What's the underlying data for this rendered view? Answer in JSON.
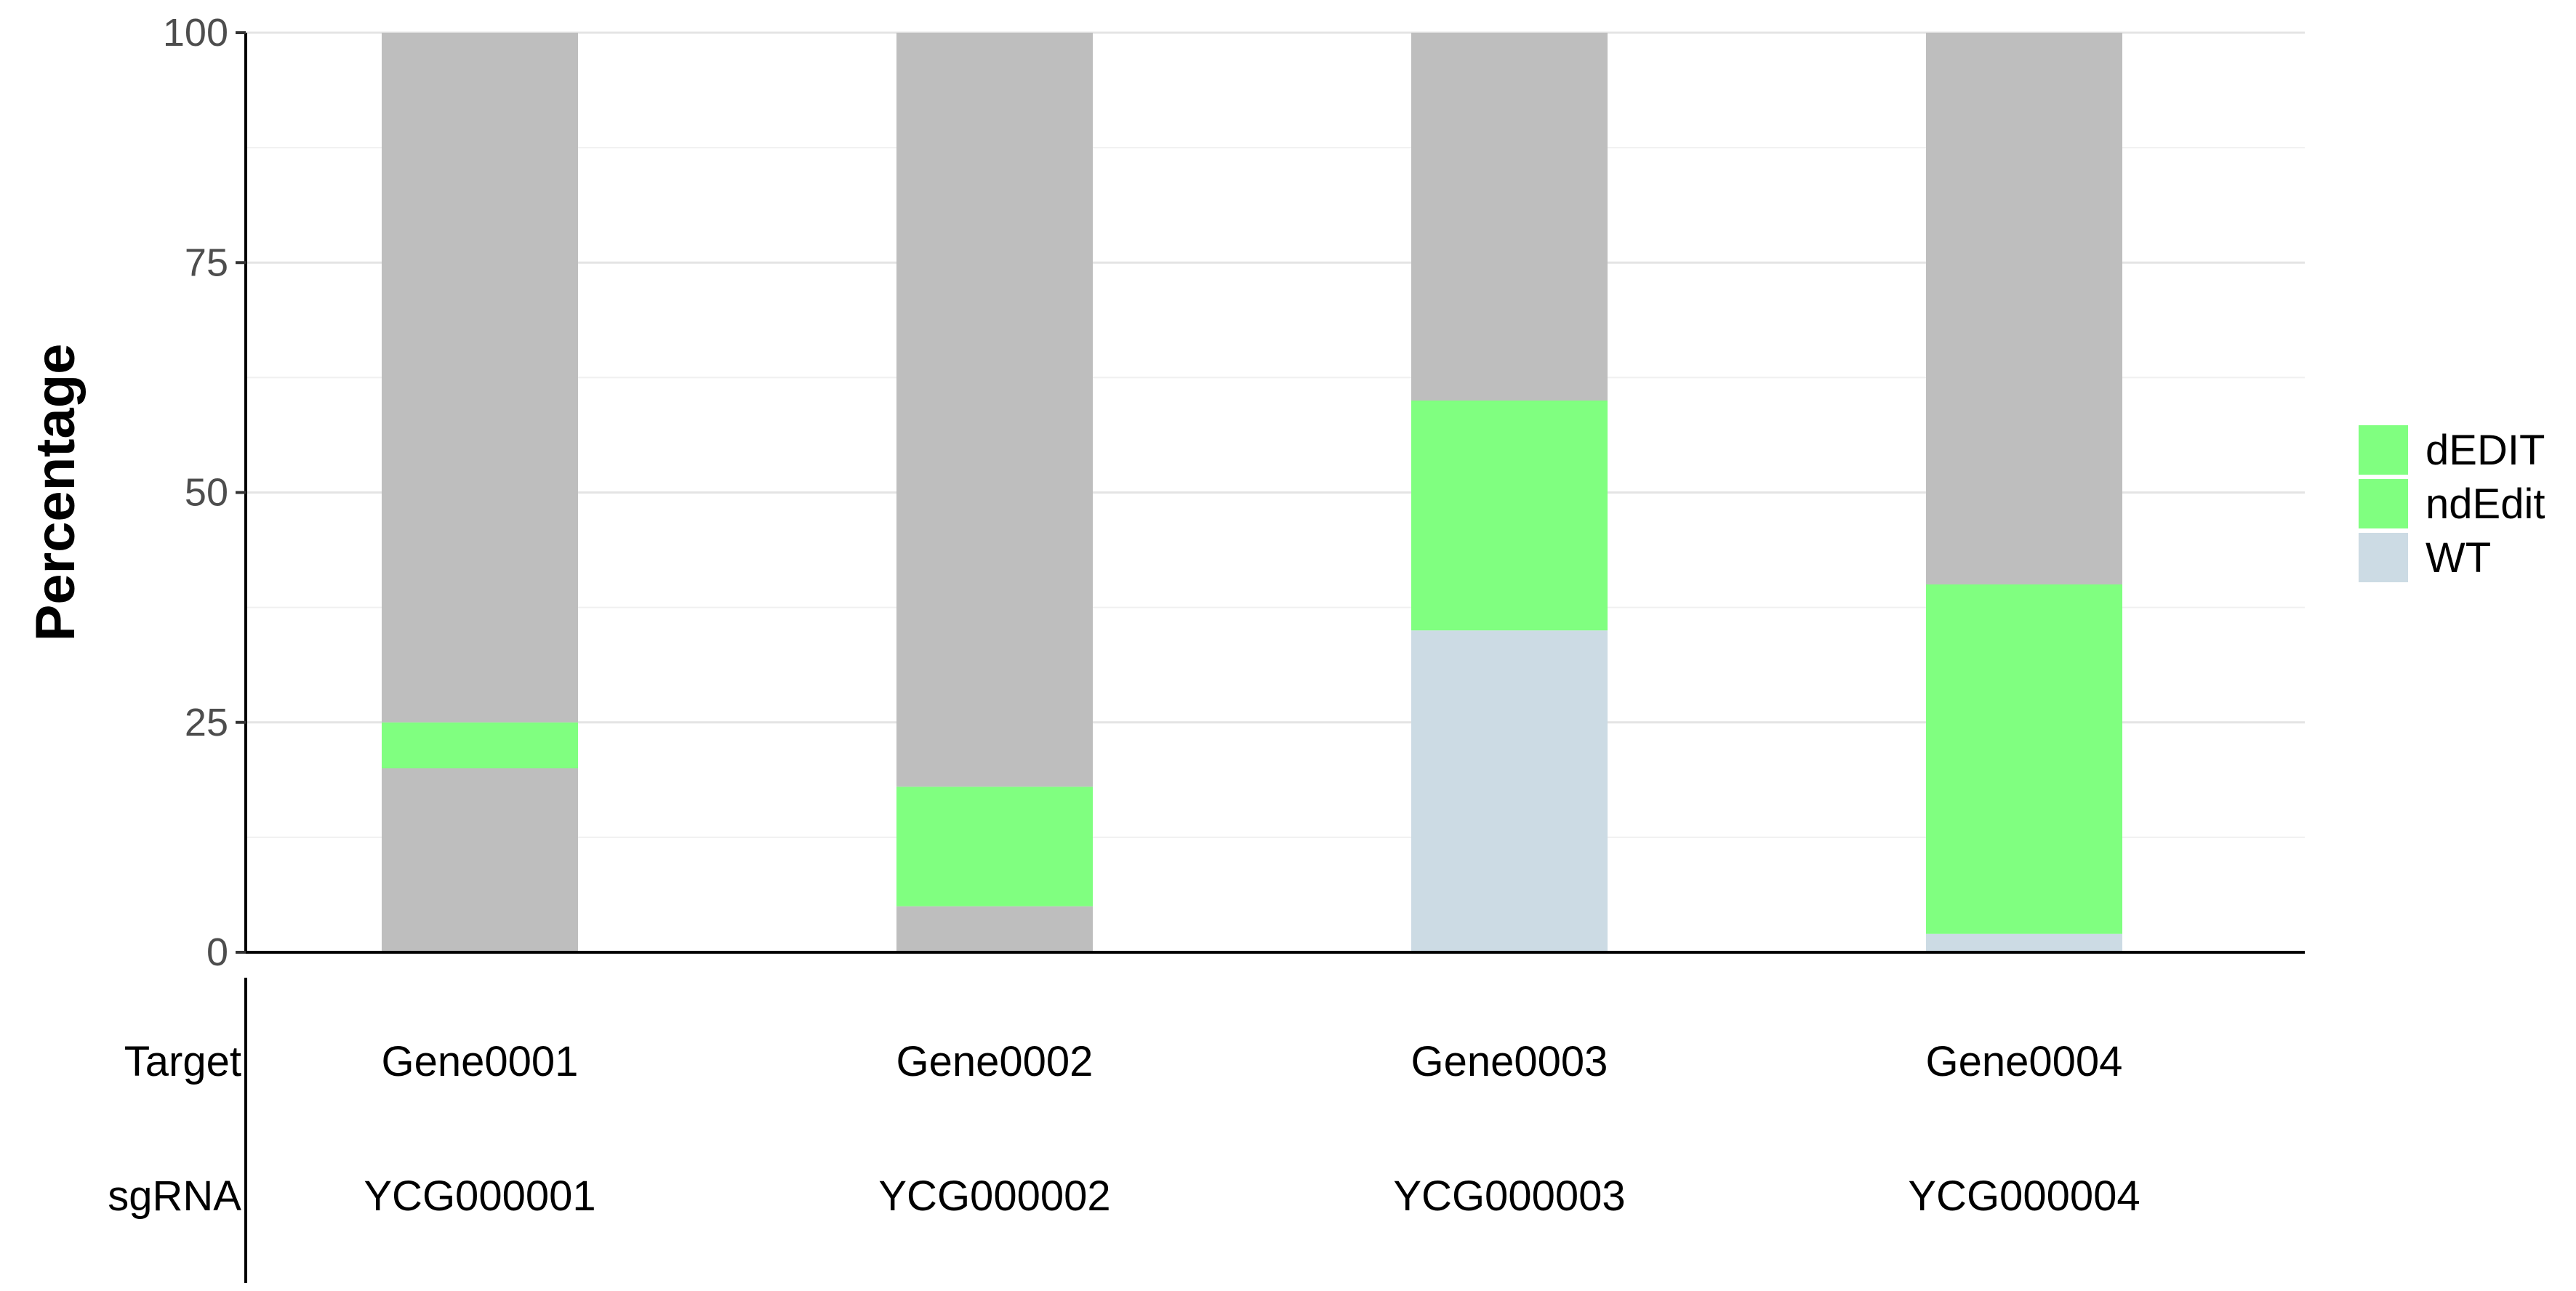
{
  "chart_data": {
    "type": "bar",
    "stacked": true,
    "ylabel": "Percentage",
    "ylim": [
      0,
      100
    ],
    "yticks": [
      0,
      25,
      50,
      75,
      100
    ],
    "grid": true,
    "legend_position": "right",
    "categories": [
      "Gene0001",
      "Gene0002",
      "Gene0003",
      "Gene0004"
    ],
    "table_rows": [
      {
        "label": "Target",
        "values": [
          "Gene0001",
          "Gene0002",
          "Gene0003",
          "Gene0004"
        ]
      },
      {
        "label": "sgRNA",
        "values": [
          "YCG000001",
          "YCG000002",
          "YCG000003",
          "YCG000004"
        ]
      }
    ],
    "series": [
      {
        "name": "WT",
        "color": "#ccdbe4",
        "values": [
          0,
          0,
          35,
          2
        ]
      },
      {
        "name": "",
        "color": "#bebebe",
        "values": [
          20,
          5,
          0,
          0
        ]
      },
      {
        "name": "ndEdit",
        "color": "#80ff80",
        "values": [
          0,
          13,
          25,
          38
        ]
      },
      {
        "name": "dEDIT",
        "color": "#80ff80",
        "values": [
          5,
          0,
          0,
          0
        ]
      },
      {
        "name": "",
        "color": "#bebebe",
        "values": [
          75,
          82,
          40,
          60
        ]
      }
    ],
    "legend": [
      {
        "name": "dEDIT",
        "color": "#80ff80"
      },
      {
        "name": "ndEdit",
        "color": "#80ff80"
      },
      {
        "name": "WT",
        "color": "#ccdbe4"
      }
    ]
  }
}
